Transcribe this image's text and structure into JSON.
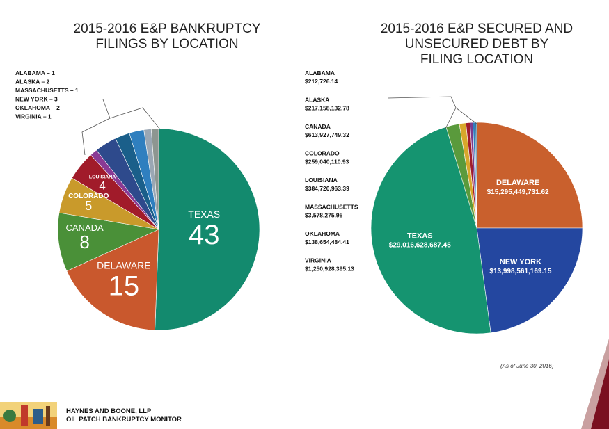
{
  "chart_data": [
    {
      "type": "pie",
      "title": "2015-2016 E&P BANKRUPTCY FILINGS BY LOCATION",
      "title_lines": [
        "2015-2016 E&P BANKRUPTCY",
        "FILINGS BY LOCATION"
      ],
      "slices": [
        {
          "label": "TEXAS",
          "value": 43,
          "color": "#138a6e",
          "display": "43"
        },
        {
          "label": "DELAWARE",
          "value": 15,
          "color": "#c9582d",
          "display": "15"
        },
        {
          "label": "CANADA",
          "value": 8,
          "color": "#4a9038",
          "display": "8"
        },
        {
          "label": "COLORADO",
          "value": 5,
          "color": "#c99a2b",
          "display": "5"
        },
        {
          "label": "LOUISIANA",
          "value": 4,
          "color": "#a11b2a",
          "display": "4"
        },
        {
          "label": "MASSACHUSETTS",
          "value": 1,
          "color": "#8a3a94",
          "display": ""
        },
        {
          "label": "NEW YORK",
          "value": 3,
          "color": "#2e4a8c",
          "display": ""
        },
        {
          "label": "OKLAHOMA",
          "value": 2,
          "color": "#1a5f8a",
          "display": ""
        },
        {
          "label": "ALASKA",
          "value": 2,
          "color": "#2f7fbf",
          "display": ""
        },
        {
          "label": "VIRGINIA",
          "value": 1,
          "color": "#9aa7b4",
          "display": ""
        },
        {
          "label": "ALABAMA",
          "value": 1,
          "color": "#8d9691",
          "display": ""
        }
      ],
      "callout_items": [
        "ALABAMA  – 1",
        "ALASKA  – 2",
        "MASSACHUSETTS – 1",
        "NEW YORK – 3",
        "OKLAHOMA  – 2",
        "VIRGINIA  – 1"
      ]
    },
    {
      "type": "pie",
      "title": "2015-2016 E&P SECURED AND UNSECURED DEBT BY FILING LOCATION",
      "title_lines": [
        "2015-2016 E&P SECURED AND",
        "UNSECURED DEBT BY",
        "FILING LOCATION"
      ],
      "slices": [
        {
          "label": "DELAWARE",
          "value": 15295449731.62,
          "display": "$15,295,449,731.62",
          "color": "#c9602d"
        },
        {
          "label": "NEW YORK",
          "value": 13998561169.15,
          "display": "$13,998,561,169.15",
          "color": "#2447a0"
        },
        {
          "label": "TEXAS",
          "value": 29016628687.45,
          "display": "$29,016,628,687.45",
          "color": "#159470"
        },
        {
          "label": "VIRGINIA",
          "value": 1250928395.13,
          "display": "$1,250,928,395.13",
          "color": "#5a9a3c"
        },
        {
          "label": "CANADA",
          "value": 613927749.32,
          "display": "$613,927,749.32",
          "color": "#d8a72b"
        },
        {
          "label": "LOUISIANA",
          "value": 384720963.39,
          "display": "$384,720,963.39",
          "color": "#a01c2c"
        },
        {
          "label": "COLORADO",
          "value": 259040110.93,
          "display": "$259,040,110.93",
          "color": "#7b3a8c"
        },
        {
          "label": "ALASKA",
          "value": 217158132.78,
          "display": "$217,158,132.78",
          "color": "#2f7fbf"
        },
        {
          "label": "OKLAHOMA",
          "value": 138654484.41,
          "display": "$138,654,484.41",
          "color": "#1b5e8a"
        },
        {
          "label": "ALABAMA",
          "value": 212726.14,
          "display": "$212,726.14",
          "color": "#888888"
        },
        {
          "label": "MASSACHUSETTS",
          "value": 3578275.95,
          "display": "$3,578,275.95",
          "color": "#9aa39e"
        }
      ],
      "legend_items": [
        {
          "name": "ALABAMA",
          "amount": "$212,726.14"
        },
        {
          "name": "ALASKA",
          "amount": "$217,158,132.78"
        },
        {
          "name": "CANADA",
          "amount": "$613,927,749.32"
        },
        {
          "name": "COLORADO",
          "amount": "$259,040,110.93"
        },
        {
          "name": "LOUISIANA",
          "amount": "$384,720,963.39"
        },
        {
          "name": "MASSACHUSETTS",
          "amount": "$3,578,275.95"
        },
        {
          "name": "OKLAHOMA",
          "amount": "$138,654,484.41"
        },
        {
          "name": "VIRGINIA",
          "amount": "$1,250,928,395.13"
        }
      ],
      "note": "(As of June 30, 2016)"
    }
  ],
  "footer": {
    "line1": "HAYNES AND BOONE, LLP",
    "line2": "OIL PATCH BANKRUPTCY MONITOR"
  },
  "colors": {
    "corner_dark": "#7a1020",
    "corner_light": "#c9a0a0"
  }
}
